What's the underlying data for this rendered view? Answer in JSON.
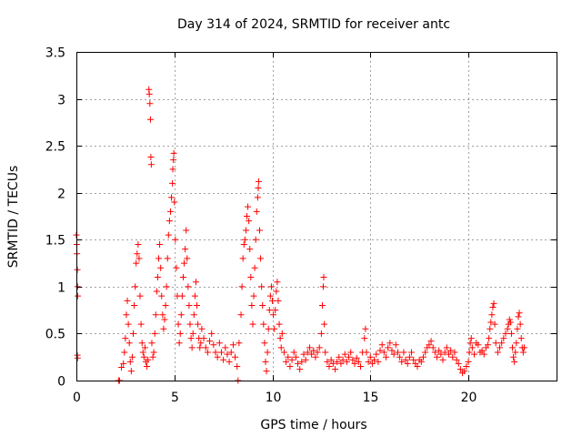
{
  "chart_data": {
    "type": "scatter",
    "title": "Day 314 of 2024, SRMTID for receiver antc",
    "xlabel": "GPS time / hours",
    "ylabel": "SRMTID / TECUs",
    "xlim": [
      0,
      24.5
    ],
    "ylim": [
      0,
      3.5
    ],
    "x_ticks": [
      0,
      5,
      10,
      15,
      20
    ],
    "x_tick_labels": [
      "0",
      "5",
      "10",
      "15",
      "20"
    ],
    "y_ticks": [
      0,
      0.5,
      1,
      1.5,
      2,
      2.5,
      3,
      3.5
    ],
    "y_tick_labels": [
      "0",
      "0.5",
      "1",
      "1.5",
      "2",
      "2.5",
      "3",
      "3.5"
    ],
    "grid": true,
    "marker": "plus",
    "marker_color": "#ff0000",
    "series": [
      {
        "name": "SRMTID",
        "points": [
          [
            0.0,
            1.55
          ],
          [
            0.02,
            1.45
          ],
          [
            0.03,
            1.35
          ],
          [
            0.05,
            1.18
          ],
          [
            0.06,
            1.0
          ],
          [
            0.07,
            0.9
          ],
          [
            0.05,
            0.27
          ],
          [
            0.06,
            0.24
          ],
          [
            2.15,
            0.0
          ],
          [
            2.2,
            0.0
          ],
          [
            2.3,
            0.14
          ],
          [
            2.4,
            0.18
          ],
          [
            2.45,
            0.3
          ],
          [
            2.5,
            0.45
          ],
          [
            2.55,
            0.7
          ],
          [
            2.6,
            0.85
          ],
          [
            2.65,
            0.6
          ],
          [
            2.7,
            0.4
          ],
          [
            2.75,
            0.2
          ],
          [
            2.8,
            0.1
          ],
          [
            2.85,
            0.25
          ],
          [
            2.9,
            0.5
          ],
          [
            2.95,
            0.8
          ],
          [
            3.0,
            1.0
          ],
          [
            3.05,
            1.25
          ],
          [
            3.1,
            1.35
          ],
          [
            3.15,
            1.45
          ],
          [
            3.2,
            1.3
          ],
          [
            3.25,
            0.9
          ],
          [
            3.3,
            0.6
          ],
          [
            3.35,
            0.4
          ],
          [
            3.4,
            0.3
          ],
          [
            3.45,
            0.25
          ],
          [
            3.5,
            0.35
          ],
          [
            3.55,
            0.2
          ],
          [
            3.6,
            0.15
          ],
          [
            3.65,
            0.22
          ],
          [
            3.7,
            3.1
          ],
          [
            3.72,
            3.05
          ],
          [
            3.75,
            2.95
          ],
          [
            3.78,
            2.78
          ],
          [
            3.8,
            2.38
          ],
          [
            3.82,
            2.3
          ],
          [
            3.85,
            0.4
          ],
          [
            3.9,
            0.25
          ],
          [
            3.95,
            0.3
          ],
          [
            4.0,
            0.5
          ],
          [
            4.05,
            0.7
          ],
          [
            4.1,
            0.95
          ],
          [
            4.15,
            1.1
          ],
          [
            4.2,
            1.3
          ],
          [
            4.25,
            1.45
          ],
          [
            4.3,
            1.2
          ],
          [
            4.35,
            0.9
          ],
          [
            4.4,
            0.7
          ],
          [
            4.45,
            0.55
          ],
          [
            4.5,
            0.65
          ],
          [
            4.55,
            0.8
          ],
          [
            4.6,
            1.0
          ],
          [
            4.65,
            1.3
          ],
          [
            4.7,
            1.55
          ],
          [
            4.75,
            1.7
          ],
          [
            4.8,
            1.8
          ],
          [
            4.85,
            1.95
          ],
          [
            4.9,
            2.1
          ],
          [
            4.92,
            2.25
          ],
          [
            4.95,
            2.35
          ],
          [
            4.97,
            2.42
          ],
          [
            5.0,
            1.9
          ],
          [
            5.05,
            1.5
          ],
          [
            5.1,
            1.2
          ],
          [
            5.15,
            0.9
          ],
          [
            5.2,
            0.6
          ],
          [
            5.25,
            0.4
          ],
          [
            5.3,
            0.5
          ],
          [
            5.35,
            0.7
          ],
          [
            5.4,
            0.9
          ],
          [
            5.45,
            1.1
          ],
          [
            5.5,
            1.25
          ],
          [
            5.55,
            1.4
          ],
          [
            5.6,
            1.6
          ],
          [
            5.65,
            1.3
          ],
          [
            5.7,
            1.0
          ],
          [
            5.75,
            0.8
          ],
          [
            5.8,
            0.6
          ],
          [
            5.85,
            0.45
          ],
          [
            5.9,
            0.35
          ],
          [
            5.95,
            0.5
          ],
          [
            6.0,
            0.7
          ],
          [
            6.05,
            0.9
          ],
          [
            6.1,
            1.05
          ],
          [
            6.15,
            0.8
          ],
          [
            6.2,
            0.6
          ],
          [
            6.25,
            0.45
          ],
          [
            6.3,
            0.35
          ],
          [
            6.35,
            0.4
          ],
          [
            6.4,
            0.55
          ],
          [
            6.5,
            0.45
          ],
          [
            6.6,
            0.35
          ],
          [
            6.7,
            0.3
          ],
          [
            6.8,
            0.42
          ],
          [
            6.9,
            0.5
          ],
          [
            7.0,
            0.38
          ],
          [
            7.1,
            0.3
          ],
          [
            7.2,
            0.25
          ],
          [
            7.3,
            0.4
          ],
          [
            7.4,
            0.3
          ],
          [
            7.5,
            0.22
          ],
          [
            7.6,
            0.35
          ],
          [
            7.7,
            0.28
          ],
          [
            7.8,
            0.2
          ],
          [
            7.9,
            0.3
          ],
          [
            8.0,
            0.38
          ],
          [
            8.1,
            0.25
          ],
          [
            8.2,
            0.15
          ],
          [
            8.25,
            0.0
          ],
          [
            8.3,
            0.4
          ],
          [
            8.4,
            0.7
          ],
          [
            8.45,
            1.0
          ],
          [
            8.5,
            1.3
          ],
          [
            8.55,
            1.45
          ],
          [
            8.6,
            1.5
          ],
          [
            8.65,
            1.6
          ],
          [
            8.7,
            1.75
          ],
          [
            8.75,
            1.85
          ],
          [
            8.8,
            1.7
          ],
          [
            8.85,
            1.4
          ],
          [
            8.9,
            1.1
          ],
          [
            8.95,
            0.8
          ],
          [
            9.0,
            0.6
          ],
          [
            9.05,
            0.9
          ],
          [
            9.1,
            1.2
          ],
          [
            9.15,
            1.5
          ],
          [
            9.2,
            1.8
          ],
          [
            9.25,
            1.95
          ],
          [
            9.28,
            2.05
          ],
          [
            9.3,
            2.12
          ],
          [
            9.35,
            1.6
          ],
          [
            9.4,
            1.3
          ],
          [
            9.45,
            1.0
          ],
          [
            9.5,
            0.8
          ],
          [
            9.55,
            0.6
          ],
          [
            9.6,
            0.4
          ],
          [
            9.65,
            0.2
          ],
          [
            9.7,
            0.1
          ],
          [
            9.75,
            0.3
          ],
          [
            9.8,
            0.55
          ],
          [
            9.85,
            0.75
          ],
          [
            9.9,
            0.9
          ],
          [
            9.95,
            1.0
          ],
          [
            10.0,
            0.85
          ],
          [
            10.05,
            0.7
          ],
          [
            10.1,
            0.55
          ],
          [
            10.15,
            0.75
          ],
          [
            10.2,
            0.95
          ],
          [
            10.25,
            1.05
          ],
          [
            10.3,
            0.85
          ],
          [
            10.35,
            0.6
          ],
          [
            10.4,
            0.45
          ],
          [
            10.45,
            0.35
          ],
          [
            10.5,
            0.5
          ],
          [
            10.6,
            0.3
          ],
          [
            10.7,
            0.2
          ],
          [
            10.8,
            0.25
          ],
          [
            10.9,
            0.15
          ],
          [
            11.0,
            0.22
          ],
          [
            11.1,
            0.3
          ],
          [
            11.2,
            0.25
          ],
          [
            11.3,
            0.18
          ],
          [
            11.4,
            0.12
          ],
          [
            11.5,
            0.2
          ],
          [
            11.6,
            0.28
          ],
          [
            11.7,
            0.22
          ],
          [
            11.8,
            0.3
          ],
          [
            11.9,
            0.35
          ],
          [
            12.0,
            0.28
          ],
          [
            12.1,
            0.32
          ],
          [
            12.2,
            0.25
          ],
          [
            12.3,
            0.3
          ],
          [
            12.4,
            0.35
          ],
          [
            12.5,
            0.5
          ],
          [
            12.55,
            0.8
          ],
          [
            12.6,
            1.0
          ],
          [
            12.62,
            1.1
          ],
          [
            12.65,
            0.6
          ],
          [
            12.7,
            0.3
          ],
          [
            12.8,
            0.2
          ],
          [
            12.9,
            0.15
          ],
          [
            13.0,
            0.22
          ],
          [
            13.1,
            0.18
          ],
          [
            13.2,
            0.12
          ],
          [
            13.3,
            0.2
          ],
          [
            13.4,
            0.25
          ],
          [
            13.5,
            0.18
          ],
          [
            13.6,
            0.22
          ],
          [
            13.7,
            0.28
          ],
          [
            13.8,
            0.2
          ],
          [
            13.9,
            0.25
          ],
          [
            14.0,
            0.3
          ],
          [
            14.1,
            0.22
          ],
          [
            14.2,
            0.18
          ],
          [
            14.3,
            0.24
          ],
          [
            14.4,
            0.2
          ],
          [
            14.5,
            0.15
          ],
          [
            14.6,
            0.3
          ],
          [
            14.7,
            0.45
          ],
          [
            14.75,
            0.55
          ],
          [
            14.8,
            0.3
          ],
          [
            14.9,
            0.2
          ],
          [
            15.0,
            0.25
          ],
          [
            15.1,
            0.18
          ],
          [
            15.2,
            0.22
          ],
          [
            15.3,
            0.28
          ],
          [
            15.4,
            0.2
          ],
          [
            15.5,
            0.32
          ],
          [
            15.6,
            0.38
          ],
          [
            15.7,
            0.3
          ],
          [
            15.8,
            0.25
          ],
          [
            15.9,
            0.35
          ],
          [
            16.0,
            0.4
          ],
          [
            16.1,
            0.32
          ],
          [
            16.2,
            0.28
          ],
          [
            16.3,
            0.38
          ],
          [
            16.4,
            0.3
          ],
          [
            16.5,
            0.25
          ],
          [
            16.6,
            0.2
          ],
          [
            16.7,
            0.3
          ],
          [
            16.8,
            0.22
          ],
          [
            16.9,
            0.18
          ],
          [
            17.0,
            0.25
          ],
          [
            17.1,
            0.3
          ],
          [
            17.2,
            0.22
          ],
          [
            17.3,
            0.18
          ],
          [
            17.4,
            0.15
          ],
          [
            17.5,
            0.22
          ],
          [
            17.6,
            0.2
          ],
          [
            17.7,
            0.25
          ],
          [
            17.8,
            0.3
          ],
          [
            17.9,
            0.35
          ],
          [
            18.0,
            0.38
          ],
          [
            18.1,
            0.42
          ],
          [
            18.2,
            0.35
          ],
          [
            18.3,
            0.3
          ],
          [
            18.4,
            0.25
          ],
          [
            18.5,
            0.32
          ],
          [
            18.6,
            0.28
          ],
          [
            18.7,
            0.22
          ],
          [
            18.8,
            0.3
          ],
          [
            18.9,
            0.35
          ],
          [
            19.0,
            0.28
          ],
          [
            19.1,
            0.32
          ],
          [
            19.2,
            0.25
          ],
          [
            19.3,
            0.3
          ],
          [
            19.4,
            0.22
          ],
          [
            19.5,
            0.18
          ],
          [
            19.6,
            0.12
          ],
          [
            19.7,
            0.08
          ],
          [
            19.8,
            0.1
          ],
          [
            19.9,
            0.15
          ],
          [
            20.0,
            0.2
          ],
          [
            20.05,
            0.3
          ],
          [
            20.1,
            0.4
          ],
          [
            20.15,
            0.45
          ],
          [
            20.2,
            0.35
          ],
          [
            20.3,
            0.28
          ],
          [
            20.4,
            0.4
          ],
          [
            20.5,
            0.38
          ],
          [
            20.6,
            0.3
          ],
          [
            20.7,
            0.32
          ],
          [
            20.8,
            0.28
          ],
          [
            20.9,
            0.35
          ],
          [
            21.0,
            0.38
          ],
          [
            21.05,
            0.45
          ],
          [
            21.1,
            0.55
          ],
          [
            21.15,
            0.62
          ],
          [
            21.2,
            0.7
          ],
          [
            21.25,
            0.78
          ],
          [
            21.3,
            0.82
          ],
          [
            21.35,
            0.6
          ],
          [
            21.4,
            0.4
          ],
          [
            21.5,
            0.3
          ],
          [
            21.6,
            0.35
          ],
          [
            21.7,
            0.4
          ],
          [
            21.8,
            0.45
          ],
          [
            21.9,
            0.5
          ],
          [
            22.0,
            0.55
          ],
          [
            22.05,
            0.6
          ],
          [
            22.1,
            0.65
          ],
          [
            22.15,
            0.62
          ],
          [
            22.2,
            0.5
          ],
          [
            22.25,
            0.35
          ],
          [
            22.3,
            0.25
          ],
          [
            22.35,
            0.2
          ],
          [
            22.4,
            0.3
          ],
          [
            22.45,
            0.4
          ],
          [
            22.5,
            0.55
          ],
          [
            22.55,
            0.68
          ],
          [
            22.6,
            0.72
          ],
          [
            22.65,
            0.6
          ],
          [
            22.7,
            0.45
          ],
          [
            22.75,
            0.35
          ],
          [
            22.8,
            0.3
          ],
          [
            22.85,
            0.35
          ]
        ]
      }
    ]
  }
}
